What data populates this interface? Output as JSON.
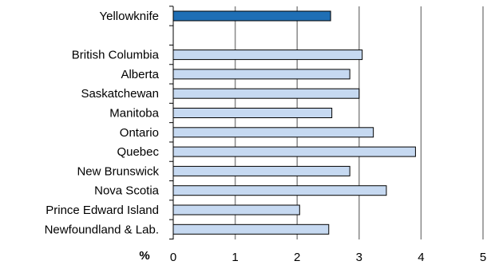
{
  "chart_data": {
    "type": "bar",
    "orientation": "horizontal",
    "categories": [
      "Yellowknife",
      "",
      "British Columbia",
      "Alberta",
      "Saskatchewan",
      "Manitoba",
      "Ontario",
      "Quebec",
      "New Brunswick",
      "Nova Scotia",
      "Prince Edward Island",
      "Newfoundland & Lab."
    ],
    "values": [
      2.54,
      null,
      3.05,
      2.85,
      3.0,
      2.56,
      3.23,
      3.91,
      2.85,
      3.44,
      2.04,
      2.51
    ],
    "highlight_index": 0,
    "colors": {
      "highlight": "#1f6fb5",
      "bar": "#c6d9f1",
      "bar_stroke": "#000000",
      "grid": "#888888"
    },
    "xlim": [
      0,
      5
    ],
    "xticks": [
      "0",
      "1",
      "2",
      "3",
      "4",
      "5"
    ],
    "xlabel": "%",
    "grid": "vertical",
    "legend": "none"
  }
}
